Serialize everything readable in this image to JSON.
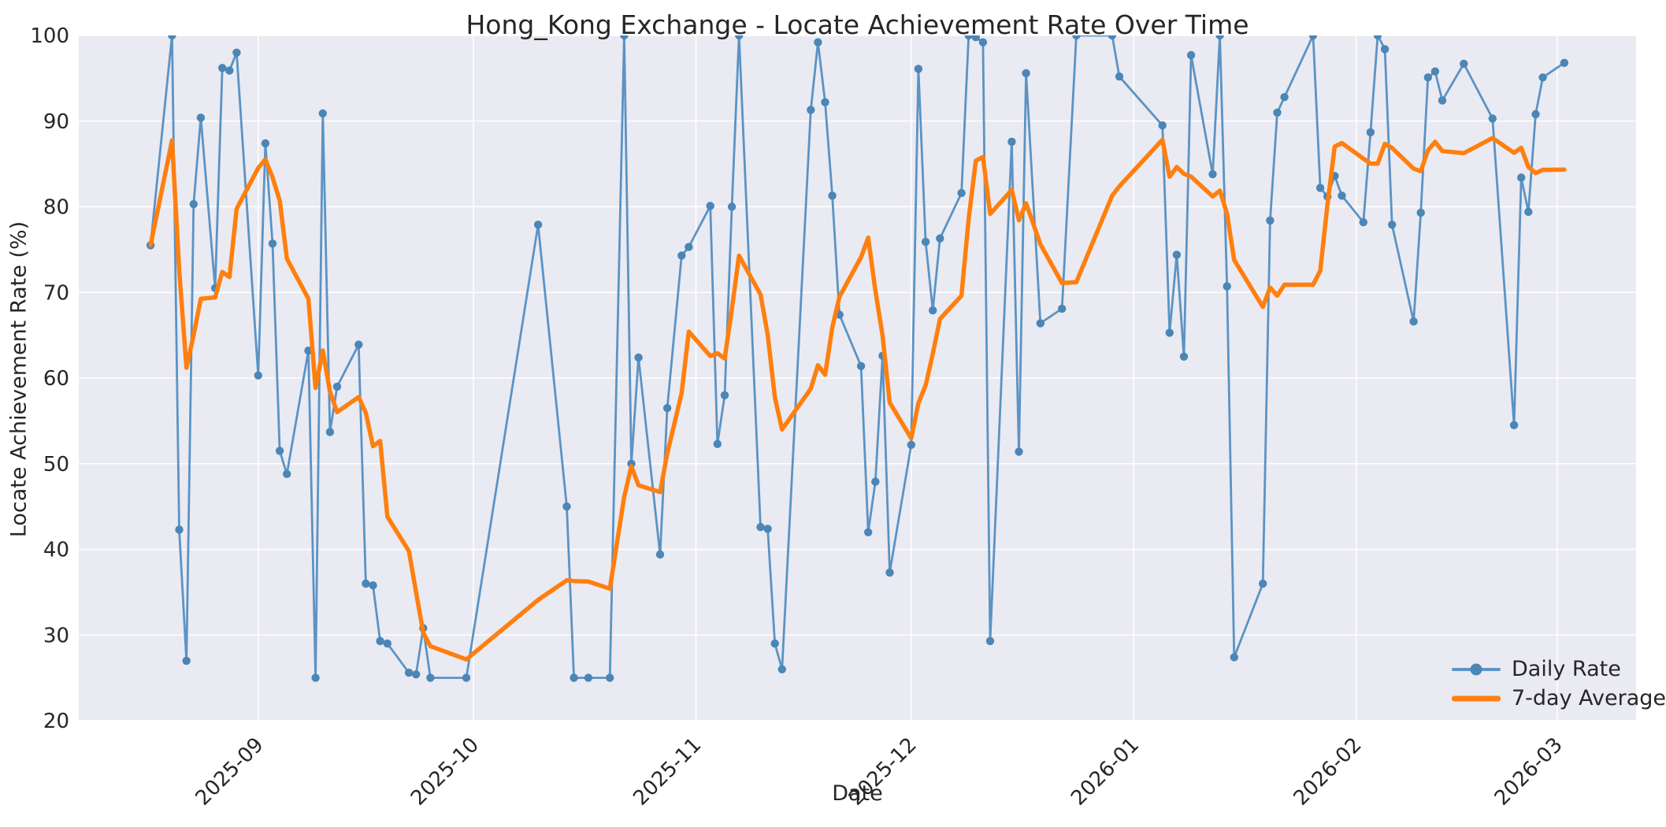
{
  "colors": {
    "figure_bg": "#ffffff",
    "plot_bg": "#eaeaf2",
    "grid": "#ffffff",
    "text": "#262626",
    "daily_line": "#5b93c4",
    "daily_marker": "#4a86b6",
    "avg_line": "#ff7f0e"
  },
  "chart_data": {
    "type": "line",
    "title": "Hong_Kong Exchange - Locate Achievement Rate Over Time",
    "xlabel": "Date",
    "ylabel": "Locate Achievement Rate (%)",
    "ylim": [
      20,
      100
    ],
    "xlim": [
      "2025-08-07",
      "2026-03-12"
    ],
    "grid": true,
    "x_tick_rotation": 45,
    "y_ticks": [
      20,
      30,
      40,
      50,
      60,
      70,
      80,
      90,
      100
    ],
    "x_ticks": [
      {
        "date": "2025-09-01",
        "label": "2025-09"
      },
      {
        "date": "2025-10-01",
        "label": "2025-10"
      },
      {
        "date": "2025-11-01",
        "label": "2025-11"
      },
      {
        "date": "2025-12-01",
        "label": "2025-12"
      },
      {
        "date": "2026-01-01",
        "label": "2026-01"
      },
      {
        "date": "2026-02-01",
        "label": "2026-02"
      },
      {
        "date": "2026-03-01",
        "label": "2026-03"
      }
    ],
    "legend": {
      "position": "lower right"
    },
    "series": [
      {
        "name": "Daily Rate",
        "style": "line+markers",
        "points": [
          [
            "2025-08-17",
            75.5
          ],
          [
            "2025-08-20",
            100
          ],
          [
            "2025-08-21",
            42.3
          ],
          [
            "2025-08-22",
            27
          ],
          [
            "2025-08-23",
            80.3
          ],
          [
            "2025-08-24",
            90.4
          ],
          [
            "2025-08-26",
            70.5
          ],
          [
            "2025-08-27",
            96.2
          ],
          [
            "2025-08-28",
            95.9
          ],
          [
            "2025-08-29",
            98
          ],
          [
            "2025-09-01",
            60.3
          ],
          [
            "2025-09-02",
            87.4
          ],
          [
            "2025-09-03",
            75.7
          ],
          [
            "2025-09-04",
            51.5
          ],
          [
            "2025-09-05",
            48.8
          ],
          [
            "2025-09-08",
            63.2
          ],
          [
            "2025-09-09",
            25
          ],
          [
            "2025-09-10",
            90.9
          ],
          [
            "2025-09-11",
            53.7
          ],
          [
            "2025-09-12",
            59
          ],
          [
            "2025-09-15",
            63.9
          ],
          [
            "2025-09-16",
            36
          ],
          [
            "2025-09-17",
            35.8
          ],
          [
            "2025-09-18",
            29.3
          ],
          [
            "2025-09-19",
            29
          ],
          [
            "2025-09-22",
            25.6
          ],
          [
            "2025-09-23",
            25.4
          ],
          [
            "2025-09-24",
            30.8
          ],
          [
            "2025-09-25",
            25
          ],
          [
            "2025-09-30",
            25
          ],
          [
            "2025-10-10",
            77.9
          ],
          [
            "2025-10-14",
            45
          ],
          [
            "2025-10-15",
            25
          ],
          [
            "2025-10-17",
            25
          ],
          [
            "2025-10-20",
            25
          ],
          [
            "2025-10-22",
            100
          ],
          [
            "2025-10-23",
            50
          ],
          [
            "2025-10-24",
            62.4
          ],
          [
            "2025-10-27",
            39.4
          ],
          [
            "2025-10-28",
            56.5
          ],
          [
            "2025-10-30",
            74.3
          ],
          [
            "2025-10-31",
            75.3
          ],
          [
            "2025-11-03",
            80.1
          ],
          [
            "2025-11-04",
            52.3
          ],
          [
            "2025-11-05",
            58
          ],
          [
            "2025-11-06",
            80
          ],
          [
            "2025-11-07",
            100
          ],
          [
            "2025-11-10",
            42.6
          ],
          [
            "2025-11-11",
            42.4
          ],
          [
            "2025-11-12",
            29
          ],
          [
            "2025-11-13",
            26
          ],
          [
            "2025-11-17",
            91.3
          ],
          [
            "2025-11-18",
            99.2
          ],
          [
            "2025-11-19",
            92.2
          ],
          [
            "2025-11-20",
            81.3
          ],
          [
            "2025-11-21",
            67.4
          ],
          [
            "2025-11-24",
            61.4
          ],
          [
            "2025-11-25",
            42
          ],
          [
            "2025-11-26",
            47.9
          ],
          [
            "2025-11-27",
            62.6
          ],
          [
            "2025-11-28",
            37.3
          ],
          [
            "2025-12-01",
            52.2
          ],
          [
            "2025-12-02",
            96.1
          ],
          [
            "2025-12-03",
            75.9
          ],
          [
            "2025-12-04",
            67.9
          ],
          [
            "2025-12-05",
            76.3
          ],
          [
            "2025-12-08",
            81.6
          ],
          [
            "2025-12-09",
            100
          ],
          [
            "2025-12-10",
            99.8
          ],
          [
            "2025-12-11",
            99.2
          ],
          [
            "2025-12-12",
            29.3
          ],
          [
            "2025-12-15",
            87.6
          ],
          [
            "2025-12-16",
            51.4
          ],
          [
            "2025-12-17",
            95.6
          ],
          [
            "2025-12-19",
            66.4
          ],
          [
            "2025-12-22",
            68.1
          ],
          [
            "2025-12-24",
            100
          ],
          [
            "2025-12-29",
            100
          ],
          [
            "2025-12-30",
            95.2
          ],
          [
            "2026-01-05",
            89.5
          ],
          [
            "2026-01-06",
            65.3
          ],
          [
            "2026-01-07",
            74.4
          ],
          [
            "2026-01-08",
            62.5
          ],
          [
            "2026-01-09",
            97.7
          ],
          [
            "2026-01-12",
            83.8
          ],
          [
            "2026-01-13",
            100
          ],
          [
            "2026-01-14",
            70.7
          ],
          [
            "2026-01-15",
            27.4
          ],
          [
            "2026-01-19",
            36
          ],
          [
            "2026-01-20",
            78.4
          ],
          [
            "2026-01-21",
            91
          ],
          [
            "2026-01-22",
            92.8
          ],
          [
            "2026-01-26",
            100
          ],
          [
            "2026-01-27",
            82.2
          ],
          [
            "2026-01-28",
            81.2
          ],
          [
            "2026-01-29",
            83.6
          ],
          [
            "2026-01-30",
            81.3
          ],
          [
            "2026-02-02",
            78.2
          ],
          [
            "2026-02-03",
            88.7
          ],
          [
            "2026-02-04",
            100
          ],
          [
            "2026-02-05",
            98.4
          ],
          [
            "2026-02-06",
            77.9
          ],
          [
            "2026-02-09",
            66.6
          ],
          [
            "2026-02-10",
            79.3
          ],
          [
            "2026-02-11",
            95.1
          ],
          [
            "2026-02-12",
            95.8
          ],
          [
            "2026-02-13",
            92.4
          ],
          [
            "2026-02-16",
            96.7
          ],
          [
            "2026-02-20",
            90.3
          ],
          [
            "2026-02-23",
            54.5
          ],
          [
            "2026-02-24",
            83.4
          ],
          [
            "2026-02-25",
            79.4
          ],
          [
            "2026-02-26",
            90.8
          ],
          [
            "2026-02-27",
            95.1
          ],
          [
            "2026-03-02",
            96.8
          ]
        ]
      },
      {
        "name": "7-day Average",
        "style": "line",
        "derived": "rolling_mean",
        "window": 7,
        "min_periods": 1,
        "source": "Daily Rate"
      }
    ]
  }
}
